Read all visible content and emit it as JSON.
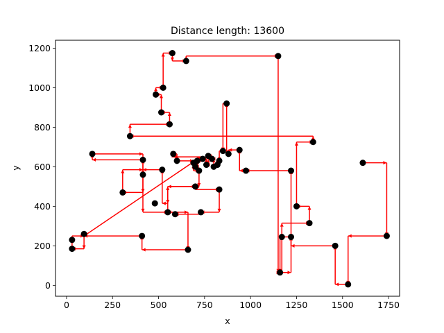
{
  "chart_data": {
    "type": "scatter",
    "title": "Distance length: 13600",
    "xlabel": "x",
    "ylabel": "y",
    "xlim": [
      -60,
      1810
    ],
    "ylim": [
      -55,
      1240
    ],
    "xticks": [
      0,
      250,
      500,
      750,
      1000,
      1250,
      1500,
      1750
    ],
    "yticks": [
      0,
      200,
      400,
      600,
      800,
      1000,
      1200
    ],
    "grid": false,
    "point_color": "#000000",
    "route_color": "#ff0000",
    "points": [
      [
        1610,
        620
      ],
      [
        1740,
        250
      ],
      [
        1530,
        5
      ],
      [
        1460,
        200
      ],
      [
        1220,
        245
      ],
      [
        1160,
        65
      ],
      [
        1170,
        245
      ],
      [
        1320,
        315
      ],
      [
        1250,
        400
      ],
      [
        1340,
        725
      ],
      [
        1220,
        580
      ],
      [
        975,
        580
      ],
      [
        940,
        685
      ],
      [
        880,
        665
      ],
      [
        870,
        920
      ],
      [
        850,
        680
      ],
      [
        830,
        630
      ],
      [
        820,
        610
      ],
      [
        800,
        600
      ],
      [
        790,
        640
      ],
      [
        770,
        655
      ],
      [
        760,
        610
      ],
      [
        740,
        640
      ],
      [
        710,
        630
      ],
      [
        700,
        600
      ],
      [
        690,
        620
      ],
      [
        720,
        580
      ],
      [
        700,
        500
      ],
      [
        830,
        485
      ],
      [
        730,
        370
      ],
      [
        550,
        370
      ],
      [
        590,
        360
      ],
      [
        415,
        560
      ],
      [
        480,
        415
      ],
      [
        520,
        585
      ],
      [
        305,
        470
      ],
      [
        415,
        635
      ],
      [
        140,
        665
      ],
      [
        345,
        755
      ],
      [
        560,
        815
      ],
      [
        515,
        875
      ],
      [
        485,
        965
      ],
      [
        525,
        1000
      ],
      [
        575,
        1175
      ],
      [
        650,
        1135
      ],
      [
        1150,
        1160
      ],
      [
        580,
        665
      ],
      [
        600,
        630
      ],
      [
        410,
        250
      ],
      [
        660,
        180
      ],
      [
        95,
        260
      ],
      [
        30,
        230
      ],
      [
        30,
        185
      ]
    ],
    "route": [
      [
        1610,
        620
      ],
      [
        1740,
        620
      ],
      [
        1740,
        250
      ],
      [
        1530,
        250
      ],
      [
        1530,
        5
      ],
      [
        1460,
        5
      ],
      [
        1460,
        200
      ],
      [
        1220,
        200
      ],
      [
        1220,
        245
      ],
      [
        1160,
        245
      ],
      [
        1160,
        65
      ],
      [
        1170,
        65
      ],
      [
        1170,
        315
      ],
      [
        1320,
        315
      ],
      [
        1320,
        400
      ],
      [
        1250,
        400
      ],
      [
        1250,
        725
      ],
      [
        1340,
        725
      ],
      [
        1340,
        755
      ],
      [
        345,
        755
      ],
      [
        345,
        815
      ],
      [
        560,
        815
      ],
      [
        560,
        875
      ],
      [
        515,
        875
      ],
      [
        515,
        965
      ],
      [
        485,
        965
      ],
      [
        485,
        1000
      ],
      [
        525,
        1000
      ],
      [
        525,
        1175
      ],
      [
        575,
        1175
      ],
      [
        575,
        1135
      ],
      [
        650,
        1135
      ],
      [
        650,
        1160
      ],
      [
        1150,
        1160
      ],
      [
        1150,
        65
      ],
      [
        1160,
        65
      ],
      [
        1220,
        65
      ],
      [
        1220,
        580
      ],
      [
        975,
        580
      ],
      [
        940,
        580
      ],
      [
        940,
        685
      ],
      [
        880,
        685
      ],
      [
        880,
        665
      ],
      [
        870,
        665
      ],
      [
        870,
        920
      ],
      [
        850,
        920
      ],
      [
        850,
        680
      ],
      [
        830,
        680
      ],
      [
        830,
        630
      ],
      [
        820,
        630
      ],
      [
        820,
        610
      ],
      [
        800,
        610
      ],
      [
        800,
        640
      ],
      [
        790,
        640
      ],
      [
        790,
        655
      ],
      [
        770,
        655
      ],
      [
        770,
        610
      ],
      [
        760,
        610
      ],
      [
        760,
        640
      ],
      [
        740,
        640
      ],
      [
        740,
        630
      ],
      [
        710,
        630
      ],
      [
        710,
        600
      ],
      [
        700,
        600
      ],
      [
        700,
        620
      ],
      [
        690,
        620
      ],
      [
        690,
        580
      ],
      [
        720,
        580
      ],
      [
        720,
        500
      ],
      [
        700,
        500
      ],
      [
        700,
        485
      ],
      [
        830,
        485
      ],
      [
        830,
        370
      ],
      [
        730,
        370
      ],
      [
        730,
        360
      ],
      [
        590,
        360
      ],
      [
        590,
        370
      ],
      [
        550,
        370
      ],
      [
        550,
        500
      ],
      [
        700,
        500
      ],
      [
        550,
        500
      ],
      [
        550,
        415
      ],
      [
        520,
        415
      ],
      [
        520,
        585
      ],
      [
        415,
        585
      ],
      [
        415,
        560
      ],
      [
        415,
        470
      ],
      [
        305,
        470
      ],
      [
        305,
        585
      ],
      [
        415,
        585
      ],
      [
        415,
        635
      ],
      [
        140,
        635
      ],
      [
        140,
        665
      ],
      [
        415,
        665
      ],
      [
        415,
        370
      ],
      [
        550,
        370
      ],
      [
        660,
        370
      ],
      [
        660,
        180
      ],
      [
        410,
        180
      ],
      [
        410,
        250
      ],
      [
        95,
        250
      ],
      [
        95,
        185
      ],
      [
        30,
        185
      ],
      [
        30,
        250
      ],
      [
        95,
        250
      ],
      [
        730,
        650
      ],
      [
        580,
        650
      ],
      [
        580,
        665
      ],
      [
        600,
        665
      ],
      [
        600,
        630
      ],
      [
        690,
        630
      ]
    ]
  }
}
